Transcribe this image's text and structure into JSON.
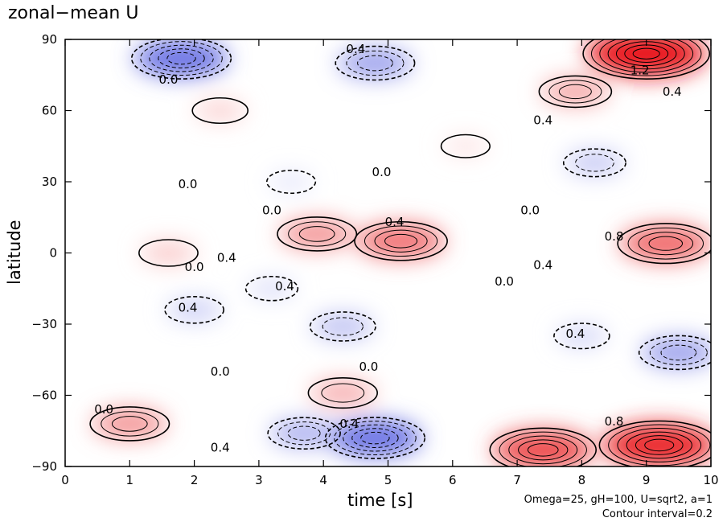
{
  "title": "zonal−mean U",
  "chart_data": {
    "type": "heatmap",
    "title": "zonal−mean U",
    "xlabel": "time [s]",
    "ylabel": "latitude",
    "xlim": [
      0,
      10
    ],
    "ylim": [
      -90,
      90
    ],
    "xticks": [
      "0",
      "1",
      "2",
      "3",
      "4",
      "5",
      "6",
      "7",
      "8",
      "9",
      "10"
    ],
    "yticks": [
      "90",
      "60",
      "30",
      "0",
      "−30",
      "−60",
      "−90"
    ],
    "contour_interval": 0.2,
    "colormap": {
      "negative": "#2b35d8",
      "zero": "#ffffff",
      "positive": "#e8191b"
    },
    "features": [
      {
        "t": 9.0,
        "lat": 84,
        "u": 1.3
      },
      {
        "t": 7.9,
        "lat": 68,
        "u": 0.5
      },
      {
        "t": 5.2,
        "lat": 5,
        "u": 0.8
      },
      {
        "t": 9.3,
        "lat": 4,
        "u": 0.85
      },
      {
        "t": 3.9,
        "lat": 8,
        "u": 0.6
      },
      {
        "t": 1.6,
        "lat": 0,
        "u": 0.3
      },
      {
        "t": 9.2,
        "lat": -81,
        "u": 1.2
      },
      {
        "t": 7.4,
        "lat": -83,
        "u": 1.0
      },
      {
        "t": 1.0,
        "lat": -72,
        "u": 0.6
      },
      {
        "t": 4.3,
        "lat": -59,
        "u": 0.45
      },
      {
        "t": 1.8,
        "lat": 82,
        "u": -0.9
      },
      {
        "t": 4.8,
        "lat": 80,
        "u": -0.6
      },
      {
        "t": 4.8,
        "lat": -78,
        "u": -0.9
      },
      {
        "t": 3.7,
        "lat": -76,
        "u": -0.5
      },
      {
        "t": 9.5,
        "lat": -42,
        "u": -0.6
      },
      {
        "t": 8.0,
        "lat": -35,
        "u": -0.25
      },
      {
        "t": 8.2,
        "lat": 38,
        "u": -0.35
      },
      {
        "t": 4.3,
        "lat": -31,
        "u": -0.4
      },
      {
        "t": 2.0,
        "lat": -24,
        "u": -0.3
      },
      {
        "t": 3.2,
        "lat": -15,
        "u": -0.2
      },
      {
        "t": 6.2,
        "lat": 45,
        "u": 0.15
      },
      {
        "t": 2.4,
        "lat": 60,
        "u": 0.25
      },
      {
        "t": 3.5,
        "lat": 30,
        "u": -0.15
      }
    ],
    "contour_labels": [
      {
        "text": "1.2",
        "t": 8.9,
        "lat": 77
      },
      {
        "text": "0.4",
        "t": 9.4,
        "lat": 68
      },
      {
        "text": "0.4",
        "t": 7.4,
        "lat": 56
      },
      {
        "text": "0.0",
        "t": 4.9,
        "lat": 34
      },
      {
        "text": "0.0",
        "t": 1.9,
        "lat": 29
      },
      {
        "text": "0.0",
        "t": 3.2,
        "lat": 18
      },
      {
        "text": "0.0",
        "t": 7.2,
        "lat": 18
      },
      {
        "text": "0.4",
        "t": 5.1,
        "lat": 13
      },
      {
        "text": "0.8",
        "t": 8.5,
        "lat": 7
      },
      {
        "text": "0.4",
        "t": 2.5,
        "lat": -2
      },
      {
        "text": "0.0",
        "t": 2.0,
        "lat": -6
      },
      {
        "text": "0.4",
        "t": 7.4,
        "lat": -5
      },
      {
        "text": "0.0",
        "t": 6.8,
        "lat": -12
      },
      {
        "text": "0.4",
        "t": 3.4,
        "lat": -14
      },
      {
        "text": "0.4",
        "t": 1.9,
        "lat": -23
      },
      {
        "text": "0.4",
        "t": 7.9,
        "lat": -34
      },
      {
        "text": "0.0",
        "t": 2.4,
        "lat": -50
      },
      {
        "text": "0.0",
        "t": 4.7,
        "lat": -48
      },
      {
        "text": "0.8",
        "t": 8.5,
        "lat": -71
      },
      {
        "text": "0.4",
        "t": 4.4,
        "lat": -72
      },
      {
        "text": "0.4",
        "t": 2.4,
        "lat": -82
      },
      {
        "text": "0.0",
        "t": 0.6,
        "lat": -66
      },
      {
        "text": "0.0",
        "t": 1.6,
        "lat": 73
      },
      {
        "text": "0.4",
        "t": 4.5,
        "lat": 86
      }
    ]
  },
  "annotation": {
    "params": "Omega=25, gH=100, U=sqrt2, a=1",
    "contour": "Contour interval=0.2"
  }
}
